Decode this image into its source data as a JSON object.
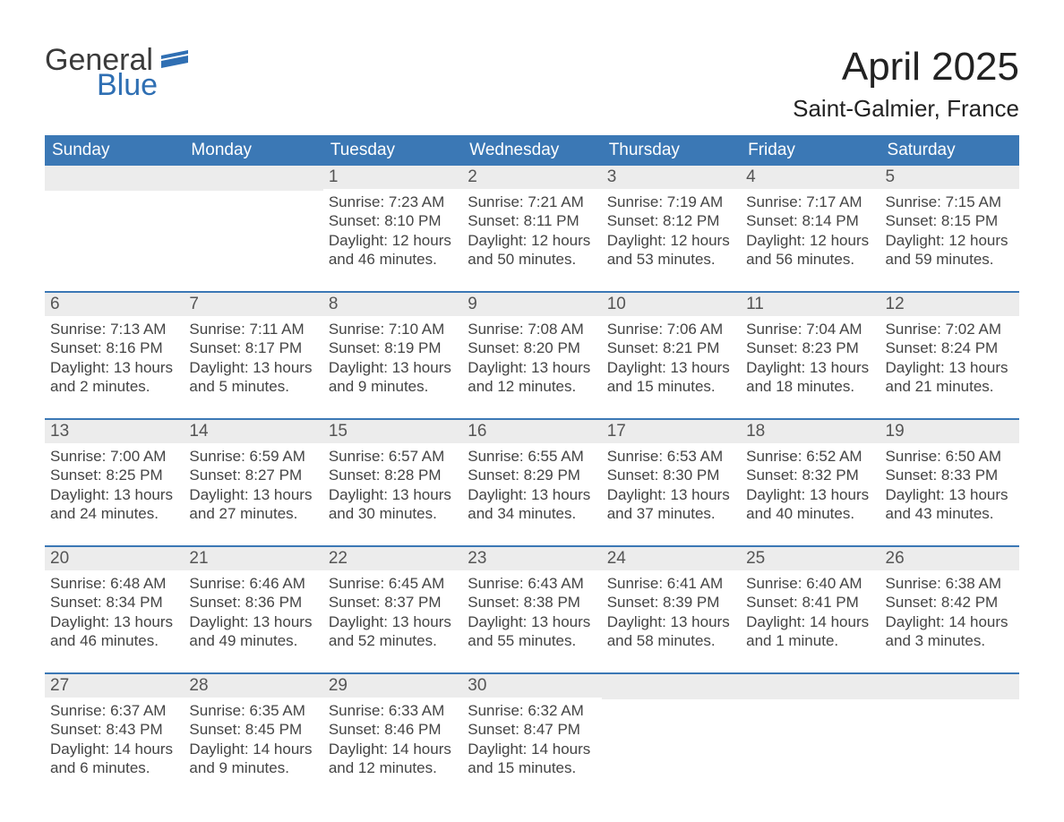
{
  "logo": {
    "word1": "General",
    "word2": "Blue"
  },
  "title": "April 2025",
  "location": "Saint-Galmier, France",
  "colors": {
    "header_blue": "#3b78b5",
    "daynum_bg": "#ececec",
    "logo_dark": "#3a3a3a",
    "logo_blue": "#2f6fb3",
    "text": "#333333",
    "background": "#ffffff"
  },
  "typography": {
    "title_fontsize": 44,
    "location_fontsize": 26,
    "header_fontsize": 19,
    "body_fontsize": 17
  },
  "layout": {
    "columns": 7,
    "rows": 5,
    "first_weekday_index": 2
  },
  "weekdays": [
    "Sunday",
    "Monday",
    "Tuesday",
    "Wednesday",
    "Thursday",
    "Friday",
    "Saturday"
  ],
  "labels": {
    "sunrise": "Sunrise:",
    "sunset": "Sunset:",
    "daylight": "Daylight:"
  },
  "days": [
    {
      "n": 1,
      "sunrise": "7:23 AM",
      "sunset": "8:10 PM",
      "daylight": "12 hours and 46 minutes."
    },
    {
      "n": 2,
      "sunrise": "7:21 AM",
      "sunset": "8:11 PM",
      "daylight": "12 hours and 50 minutes."
    },
    {
      "n": 3,
      "sunrise": "7:19 AM",
      "sunset": "8:12 PM",
      "daylight": "12 hours and 53 minutes."
    },
    {
      "n": 4,
      "sunrise": "7:17 AM",
      "sunset": "8:14 PM",
      "daylight": "12 hours and 56 minutes."
    },
    {
      "n": 5,
      "sunrise": "7:15 AM",
      "sunset": "8:15 PM",
      "daylight": "12 hours and 59 minutes."
    },
    {
      "n": 6,
      "sunrise": "7:13 AM",
      "sunset": "8:16 PM",
      "daylight": "13 hours and 2 minutes."
    },
    {
      "n": 7,
      "sunrise": "7:11 AM",
      "sunset": "8:17 PM",
      "daylight": "13 hours and 5 minutes."
    },
    {
      "n": 8,
      "sunrise": "7:10 AM",
      "sunset": "8:19 PM",
      "daylight": "13 hours and 9 minutes."
    },
    {
      "n": 9,
      "sunrise": "7:08 AM",
      "sunset": "8:20 PM",
      "daylight": "13 hours and 12 minutes."
    },
    {
      "n": 10,
      "sunrise": "7:06 AM",
      "sunset": "8:21 PM",
      "daylight": "13 hours and 15 minutes."
    },
    {
      "n": 11,
      "sunrise": "7:04 AM",
      "sunset": "8:23 PM",
      "daylight": "13 hours and 18 minutes."
    },
    {
      "n": 12,
      "sunrise": "7:02 AM",
      "sunset": "8:24 PM",
      "daylight": "13 hours and 21 minutes."
    },
    {
      "n": 13,
      "sunrise": "7:00 AM",
      "sunset": "8:25 PM",
      "daylight": "13 hours and 24 minutes."
    },
    {
      "n": 14,
      "sunrise": "6:59 AM",
      "sunset": "8:27 PM",
      "daylight": "13 hours and 27 minutes."
    },
    {
      "n": 15,
      "sunrise": "6:57 AM",
      "sunset": "8:28 PM",
      "daylight": "13 hours and 30 minutes."
    },
    {
      "n": 16,
      "sunrise": "6:55 AM",
      "sunset": "8:29 PM",
      "daylight": "13 hours and 34 minutes."
    },
    {
      "n": 17,
      "sunrise": "6:53 AM",
      "sunset": "8:30 PM",
      "daylight": "13 hours and 37 minutes."
    },
    {
      "n": 18,
      "sunrise": "6:52 AM",
      "sunset": "8:32 PM",
      "daylight": "13 hours and 40 minutes."
    },
    {
      "n": 19,
      "sunrise": "6:50 AM",
      "sunset": "8:33 PM",
      "daylight": "13 hours and 43 minutes."
    },
    {
      "n": 20,
      "sunrise": "6:48 AM",
      "sunset": "8:34 PM",
      "daylight": "13 hours and 46 minutes."
    },
    {
      "n": 21,
      "sunrise": "6:46 AM",
      "sunset": "8:36 PM",
      "daylight": "13 hours and 49 minutes."
    },
    {
      "n": 22,
      "sunrise": "6:45 AM",
      "sunset": "8:37 PM",
      "daylight": "13 hours and 52 minutes."
    },
    {
      "n": 23,
      "sunrise": "6:43 AM",
      "sunset": "8:38 PM",
      "daylight": "13 hours and 55 minutes."
    },
    {
      "n": 24,
      "sunrise": "6:41 AM",
      "sunset": "8:39 PM",
      "daylight": "13 hours and 58 minutes."
    },
    {
      "n": 25,
      "sunrise": "6:40 AM",
      "sunset": "8:41 PM",
      "daylight": "14 hours and 1 minute."
    },
    {
      "n": 26,
      "sunrise": "6:38 AM",
      "sunset": "8:42 PM",
      "daylight": "14 hours and 3 minutes."
    },
    {
      "n": 27,
      "sunrise": "6:37 AM",
      "sunset": "8:43 PM",
      "daylight": "14 hours and 6 minutes."
    },
    {
      "n": 28,
      "sunrise": "6:35 AM",
      "sunset": "8:45 PM",
      "daylight": "14 hours and 9 minutes."
    },
    {
      "n": 29,
      "sunrise": "6:33 AM",
      "sunset": "8:46 PM",
      "daylight": "14 hours and 12 minutes."
    },
    {
      "n": 30,
      "sunrise": "6:32 AM",
      "sunset": "8:47 PM",
      "daylight": "14 hours and 15 minutes."
    }
  ]
}
